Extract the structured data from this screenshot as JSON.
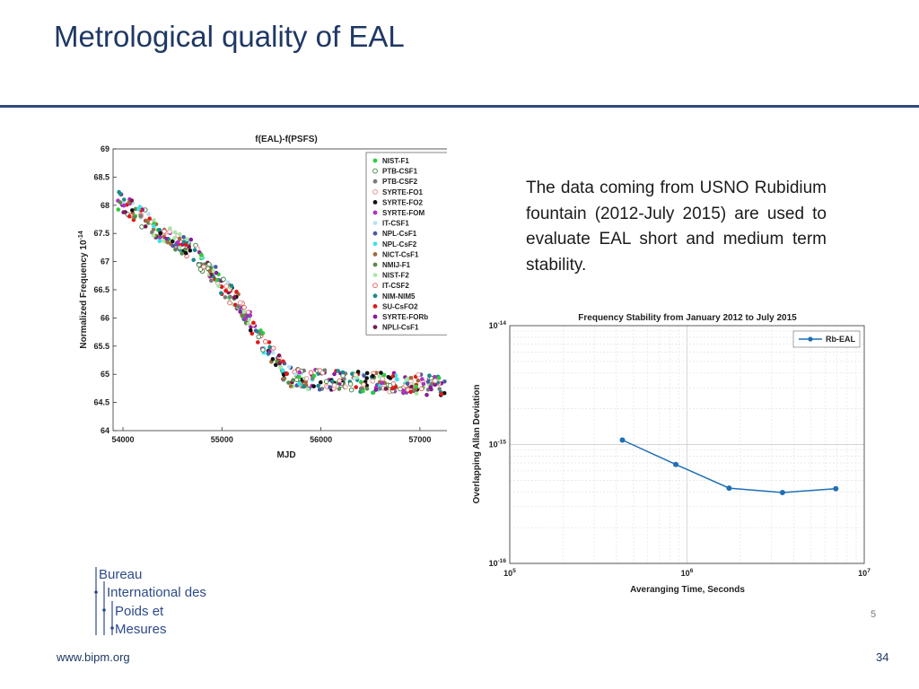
{
  "slide": {
    "title": "Metrological quality of EAL",
    "note": "The data coming from USNO Rubidium fountain (2012-July 2015) are used to evaluate EAL short and medium term stability.",
    "footer_url": "www.bipm.org",
    "page_number": "34",
    "stray_digit": "5"
  },
  "logo": {
    "lines": [
      "Bureau",
      "International des",
      "Poids et",
      "Mesures"
    ],
    "color": "#2f4a8a"
  },
  "chart_data": [
    {
      "type": "scatter",
      "title": "f(EAL)-f(PSFS)",
      "xlabel": "MJD",
      "ylabel": "Normalized Frequency 10",
      "ylabel_exponent": "-14",
      "xlim": [
        53900,
        57400
      ],
      "ylim": [
        64,
        69
      ],
      "xticks": [
        54000,
        55000,
        56000,
        57000
      ],
      "xtick_labels": [
        "54000",
        "55000",
        "56000",
        "57000"
      ],
      "yticks": [
        64,
        64.5,
        65,
        65.5,
        66,
        66.5,
        67,
        67.5,
        68,
        68.5,
        69
      ],
      "ytick_labels": [
        "64",
        "64.5",
        "65",
        "65.5",
        "66",
        "66.5",
        "67",
        "67.5",
        "68",
        "68.5",
        "69"
      ],
      "trend": [
        [
          53950,
          68.1
        ],
        [
          54150,
          67.85
        ],
        [
          54400,
          67.5
        ],
        [
          54700,
          67.2
        ],
        [
          54900,
          66.8
        ],
        [
          55100,
          66.4
        ],
        [
          55250,
          66.05
        ],
        [
          55400,
          65.6
        ],
        [
          55550,
          65.2
        ],
        [
          55700,
          64.95
        ],
        [
          55900,
          64.9
        ],
        [
          56200,
          64.9
        ],
        [
          56500,
          64.85
        ],
        [
          56800,
          64.85
        ],
        [
          57100,
          64.8
        ],
        [
          57300,
          64.75
        ]
      ],
      "legend_position": "top-right",
      "series": [
        {
          "name": "NIST-F1",
          "color": "#2ecc40",
          "marker": "filled"
        },
        {
          "name": "PTB-CSF1",
          "color": "#3a7a3a",
          "marker": "open"
        },
        {
          "name": "PTB-CSF2",
          "color": "#7a7a7a",
          "marker": "filled"
        },
        {
          "name": "SYRTE-FO1",
          "color": "#e08a8a",
          "marker": "open"
        },
        {
          "name": "SYRTE-FO2",
          "color": "#111111",
          "marker": "filled"
        },
        {
          "name": "SYRTE-FOM",
          "color": "#b030c0",
          "marker": "filled"
        },
        {
          "name": "IT-CSF1",
          "color": "#b8e0f8",
          "marker": "filled"
        },
        {
          "name": "NPL-CsF1",
          "color": "#4a5aa0",
          "marker": "filled"
        },
        {
          "name": "NPL-CsF2",
          "color": "#40e0e8",
          "marker": "filled"
        },
        {
          "name": "NICT-CsF1",
          "color": "#a06a3a",
          "marker": "filled"
        },
        {
          "name": "NMIJ-F1",
          "color": "#5a8a4a",
          "marker": "filled"
        },
        {
          "name": "NIST-F2",
          "color": "#a8e8a8",
          "marker": "filled"
        },
        {
          "name": "IT-CSF2",
          "color": "#e05a5a",
          "marker": "open"
        },
        {
          "name": "NIM-NIM5",
          "color": "#1a8a8a",
          "marker": "filled"
        },
        {
          "name": "SU-CsFO2",
          "color": "#e01818",
          "marker": "filled"
        },
        {
          "name": "SYRTE-FORb",
          "color": "#8a1a9a",
          "marker": "filled"
        },
        {
          "name": "NPLI-CsF1",
          "color": "#7a1a4a",
          "marker": "filled"
        }
      ]
    },
    {
      "type": "line",
      "title": "Frequency Stability from January 2012 to July 2015",
      "xlabel": "Averanging Time, Seconds",
      "ylabel": "Overlapping Allan Deviation",
      "x_scale": "log",
      "y_scale": "log",
      "xlim": [
        100000,
        10000000
      ],
      "ylim": [
        1e-16,
        1e-14
      ],
      "grid": true,
      "xtick_labels": [
        {
          "value": 100000,
          "base": "10",
          "exp": "5"
        },
        {
          "value": 1000000,
          "base": "10",
          "exp": "6"
        },
        {
          "value": 10000000,
          "base": "10",
          "exp": "7"
        }
      ],
      "ytick_labels": [
        {
          "value": 1e-16,
          "base": "10",
          "exp": "-16"
        },
        {
          "value": 1e-15,
          "base": "10",
          "exp": "-15"
        },
        {
          "value": 1e-14,
          "base": "10",
          "exp": "-14"
        }
      ],
      "legend_position": "top-right",
      "series": [
        {
          "name": "Rb-EAL",
          "color": "#1f6fb5",
          "x": [
            432000,
            864000,
            1728000,
            3456000,
            6912000
          ],
          "y": [
            1.09e-15,
            6.8e-16,
            4.3e-16,
            3.95e-16,
            4.25e-16
          ]
        }
      ]
    }
  ]
}
